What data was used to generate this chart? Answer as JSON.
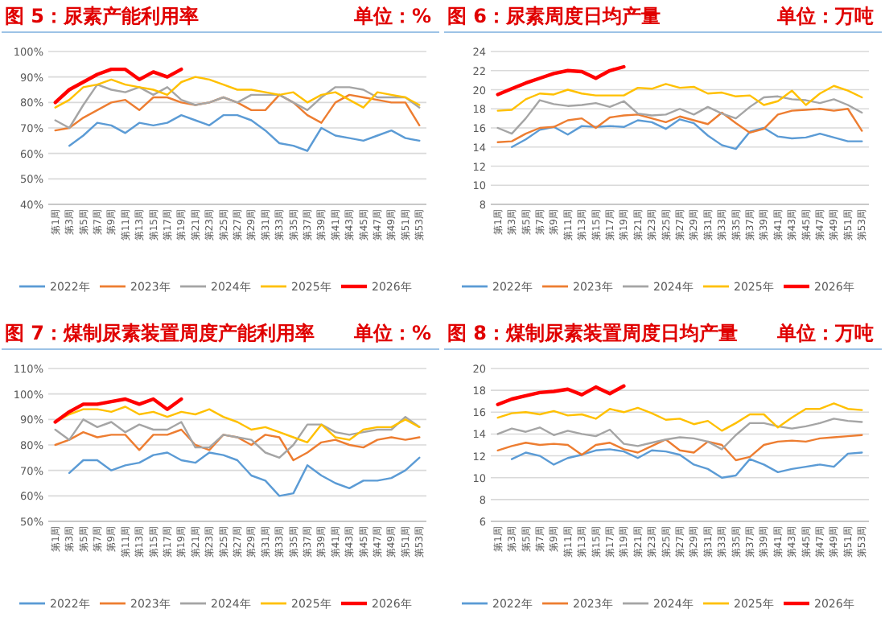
{
  "chart_data": [
    {
      "type": "line",
      "title": "图 5：尿素产能利用率",
      "subtitle": "单位：%",
      "grid": "y",
      "legend": "bottom",
      "marker": "none",
      "line_style": "solid",
      "categories": [
        "第1周",
        "第3周",
        "第5周",
        "第7周",
        "第9周",
        "第11周",
        "第13周",
        "第15周",
        "第17周",
        "第19周",
        "第21周",
        "第23周",
        "第25周",
        "第27周",
        "第29周",
        "第31周",
        "第33周",
        "第35周",
        "第37周",
        "第39周",
        "第41周",
        "第43周",
        "第45周",
        "第47周",
        "第49周",
        "第51周",
        "第53周"
      ],
      "ylim": [
        40,
        100
      ],
      "yticks": [
        {
          "value": 40,
          "label": "40%"
        },
        {
          "value": 50,
          "label": "50%"
        },
        {
          "value": 60,
          "label": "60%"
        },
        {
          "value": 70,
          "label": "70%"
        },
        {
          "value": 80,
          "label": "80%"
        },
        {
          "value": 90,
          "label": "90%"
        },
        {
          "value": 100,
          "label": "100%"
        }
      ],
      "series": [
        {
          "name": "2022年",
          "color": "#5b9bd5",
          "values": [
            null,
            63,
            67,
            72,
            71,
            68,
            72,
            71,
            72,
            75,
            73,
            71,
            75,
            75,
            73,
            69,
            64,
            63,
            61,
            70,
            67,
            66,
            65,
            67,
            69,
            66,
            65
          ]
        },
        {
          "name": "2023年",
          "color": "#ed7d31",
          "values": [
            69,
            70,
            74,
            77,
            80,
            81,
            77,
            82,
            82,
            80,
            79,
            80,
            82,
            80,
            77,
            77,
            83,
            80,
            75,
            72,
            80,
            83,
            82,
            81,
            80,
            80,
            71
          ]
        },
        {
          "name": "2024年",
          "color": "#a5a5a5",
          "values": [
            73,
            70,
            79,
            87,
            85,
            84,
            86,
            83,
            86,
            81,
            79,
            80,
            82,
            80,
            83,
            83,
            83,
            80,
            77,
            82,
            86,
            86,
            85,
            82,
            82,
            82,
            78
          ]
        },
        {
          "name": "2025年",
          "color": "#ffc000",
          "values": [
            78,
            81,
            86,
            87,
            89,
            87,
            86,
            85,
            83,
            88,
            90,
            89,
            87,
            85,
            85,
            84,
            83,
            84,
            80,
            83,
            84,
            81,
            78,
            84,
            83,
            82,
            79
          ]
        },
        {
          "name": "2026年",
          "color": "#ff0000",
          "values": [
            80,
            85,
            88,
            91,
            93,
            93,
            89,
            92,
            90,
            93,
            null,
            null,
            null,
            null,
            null,
            null,
            null,
            null,
            null,
            null,
            null,
            null,
            null,
            null,
            null,
            null,
            null
          ]
        }
      ]
    },
    {
      "type": "line",
      "title": "图 6：尿素周度日均产量",
      "subtitle": "单位：万吨",
      "grid": "y",
      "legend": "bottom",
      "marker": "none",
      "line_style": "solid",
      "categories": [
        "第1周",
        "第3周",
        "第5周",
        "第7周",
        "第9周",
        "第11周",
        "第13周",
        "第15周",
        "第17周",
        "第19周",
        "第21周",
        "第23周",
        "第25周",
        "第27周",
        "第29周",
        "第31周",
        "第33周",
        "第35周",
        "第37周",
        "第39周",
        "第41周",
        "第43周",
        "第45周",
        "第47周",
        "第49周",
        "第51周",
        "第53周"
      ],
      "ylim": [
        8,
        24
      ],
      "yticks": [
        8,
        10,
        12,
        14,
        16,
        18,
        20,
        22,
        24
      ],
      "series": [
        {
          "name": "2022年",
          "color": "#5b9bd5",
          "values": [
            null,
            14.0,
            14.8,
            15.8,
            16.1,
            15.3,
            16.2,
            16.1,
            16.2,
            16.1,
            16.8,
            16.6,
            15.9,
            16.9,
            16.5,
            15.2,
            14.2,
            13.8,
            15.6,
            16.0,
            15.1,
            14.9,
            15.0,
            15.4,
            15.0,
            14.6,
            14.6
          ]
        },
        {
          "name": "2023年",
          "color": "#ed7d31",
          "values": [
            14.5,
            14.6,
            15.4,
            16.0,
            16.1,
            16.8,
            17.0,
            16.0,
            17.1,
            17.3,
            17.4,
            17.0,
            16.6,
            17.2,
            16.8,
            16.4,
            17.6,
            16.5,
            15.5,
            15.9,
            17.4,
            17.8,
            17.9,
            18.0,
            17.8,
            18.0,
            15.7
          ]
        },
        {
          "name": "2024年",
          "color": "#a5a5a5",
          "values": [
            16.0,
            15.4,
            17.0,
            18.9,
            18.5,
            18.3,
            18.4,
            18.6,
            18.2,
            18.8,
            17.5,
            17.3,
            17.4,
            18.0,
            17.4,
            18.2,
            17.5,
            17.0,
            18.2,
            19.2,
            19.3,
            19.0,
            18.9,
            18.6,
            19.0,
            18.4,
            17.6
          ]
        },
        {
          "name": "2025年",
          "color": "#ffc000",
          "values": [
            17.8,
            17.9,
            19.0,
            19.6,
            19.5,
            20.0,
            19.6,
            19.4,
            19.4,
            19.4,
            20.2,
            20.1,
            20.6,
            20.2,
            20.3,
            19.6,
            19.7,
            19.3,
            19.4,
            18.4,
            18.8,
            19.9,
            18.4,
            19.6,
            20.4,
            19.9,
            19.2
          ]
        },
        {
          "name": "2026年",
          "color": "#ff0000",
          "values": [
            19.5,
            20.1,
            20.7,
            21.2,
            21.7,
            22.0,
            21.9,
            21.2,
            22.0,
            22.4,
            null,
            null,
            null,
            null,
            null,
            null,
            null,
            null,
            null,
            null,
            null,
            null,
            null,
            null,
            null,
            null,
            null
          ]
        }
      ]
    },
    {
      "type": "line",
      "title": "图 7：煤制尿素装置周度产能利用率",
      "subtitle": "单位：%",
      "grid": "y",
      "legend": "bottom",
      "marker": "none",
      "line_style": "solid",
      "categories": [
        "第1周",
        "第3周",
        "第5周",
        "第7周",
        "第9周",
        "第11周",
        "第13周",
        "第15周",
        "第17周",
        "第19周",
        "第21周",
        "第23周",
        "第25周",
        "第27周",
        "第29周",
        "第31周",
        "第33周",
        "第35周",
        "第37周",
        "第39周",
        "第41周",
        "第43周",
        "第45周",
        "第47周",
        "第49周",
        "第51周",
        "第53周"
      ],
      "ylim": [
        50,
        110
      ],
      "yticks": [
        {
          "value": 50,
          "label": "50%"
        },
        {
          "value": 60,
          "label": "60%"
        },
        {
          "value": 70,
          "label": "70%"
        },
        {
          "value": 80,
          "label": "80%"
        },
        {
          "value": 90,
          "label": "90%"
        },
        {
          "value": 100,
          "label": "100%"
        },
        {
          "value": 110,
          "label": "110%"
        }
      ],
      "series": [
        {
          "name": "2022年",
          "color": "#5b9bd5",
          "values": [
            null,
            69,
            74,
            74,
            70,
            72,
            73,
            76,
            77,
            74,
            73,
            77,
            76,
            74,
            68,
            66,
            60,
            61,
            72,
            68,
            65,
            63,
            66,
            66,
            67,
            70,
            75
          ]
        },
        {
          "name": "2023年",
          "color": "#ed7d31",
          "values": [
            80,
            82,
            85,
            83,
            84,
            84,
            78,
            84,
            84,
            86,
            80,
            78,
            84,
            83,
            80,
            84,
            83,
            74,
            77,
            81,
            82,
            80,
            79,
            82,
            83,
            82,
            83
          ]
        },
        {
          "name": "2024年",
          "color": "#a5a5a5",
          "values": [
            86,
            82,
            90,
            87,
            89,
            85,
            88,
            86,
            86,
            89,
            79,
            79,
            84,
            83,
            82,
            77,
            75,
            80,
            88,
            88,
            85,
            84,
            85,
            86,
            86,
            91,
            87
          ]
        },
        {
          "name": "2025年",
          "color": "#ffc000",
          "values": [
            89,
            92,
            94,
            94,
            93,
            95,
            92,
            93,
            91,
            93,
            92,
            94,
            91,
            89,
            86,
            87,
            85,
            83,
            81,
            88,
            83,
            82,
            86,
            87,
            87,
            90,
            87
          ]
        },
        {
          "name": "2026年",
          "color": "#ff0000",
          "values": [
            89,
            93,
            96,
            96,
            97,
            98,
            96,
            98,
            94,
            98,
            null,
            null,
            null,
            null,
            null,
            null,
            null,
            null,
            null,
            null,
            null,
            null,
            null,
            null,
            null,
            null,
            null
          ]
        }
      ]
    },
    {
      "type": "line",
      "title": "图 8：煤制尿素装置周度日均产量",
      "subtitle": "单位：万吨",
      "grid": "y",
      "legend": "bottom",
      "marker": "none",
      "line_style": "solid",
      "categories": [
        "第1周",
        "第3周",
        "第5周",
        "第7周",
        "第9周",
        "第11周",
        "第13周",
        "第15周",
        "第17周",
        "第19周",
        "第21周",
        "第23周",
        "第25周",
        "第27周",
        "第29周",
        "第31周",
        "第33周",
        "第35周",
        "第37周",
        "第39周",
        "第41周",
        "第43周",
        "第45周",
        "第47周",
        "第49周",
        "第51周",
        "第53周"
      ],
      "ylim": [
        6,
        20
      ],
      "yticks": [
        6,
        8,
        10,
        12,
        14,
        16,
        18,
        20
      ],
      "series": [
        {
          "name": "2022年",
          "color": "#5b9bd5",
          "values": [
            null,
            11.7,
            12.3,
            12.0,
            11.2,
            11.8,
            12.1,
            12.5,
            12.6,
            12.4,
            11.8,
            12.5,
            12.4,
            12.1,
            11.2,
            10.8,
            10.0,
            10.2,
            11.7,
            11.2,
            10.5,
            10.8,
            11.0,
            11.2,
            11.0,
            12.2,
            12.3
          ]
        },
        {
          "name": "2023年",
          "color": "#ed7d31",
          "values": [
            12.5,
            12.9,
            13.2,
            13.0,
            13.1,
            13.0,
            12.1,
            13.0,
            13.2,
            12.6,
            12.3,
            12.9,
            13.5,
            12.5,
            12.3,
            13.3,
            13.0,
            11.6,
            11.9,
            13.0,
            13.3,
            13.4,
            13.3,
            13.6,
            13.7,
            13.8,
            13.9
          ]
        },
        {
          "name": "2024年",
          "color": "#a5a5a5",
          "values": [
            14.0,
            14.5,
            14.2,
            14.6,
            13.9,
            14.3,
            14.0,
            13.8,
            14.4,
            13.1,
            12.9,
            13.2,
            13.5,
            13.7,
            13.6,
            13.3,
            12.6,
            13.9,
            15.0,
            15.0,
            14.7,
            14.5,
            14.7,
            15.0,
            15.4,
            15.2,
            15.1
          ]
        },
        {
          "name": "2025年",
          "color": "#ffc000",
          "values": [
            15.5,
            15.9,
            16.0,
            15.8,
            16.1,
            15.7,
            15.8,
            15.4,
            16.3,
            16.0,
            16.4,
            15.9,
            15.3,
            15.4,
            14.9,
            15.2,
            14.3,
            15.0,
            15.8,
            15.8,
            14.6,
            15.5,
            16.3,
            16.3,
            16.8,
            16.3,
            16.2
          ]
        },
        {
          "name": "2026年",
          "color": "#ff0000",
          "values": [
            16.7,
            17.2,
            17.5,
            17.8,
            17.9,
            18.1,
            17.6,
            18.3,
            17.7,
            18.4,
            null,
            null,
            null,
            null,
            null,
            null,
            null,
            null,
            null,
            null,
            null,
            null,
            null,
            null,
            null,
            null,
            null
          ]
        }
      ]
    }
  ]
}
